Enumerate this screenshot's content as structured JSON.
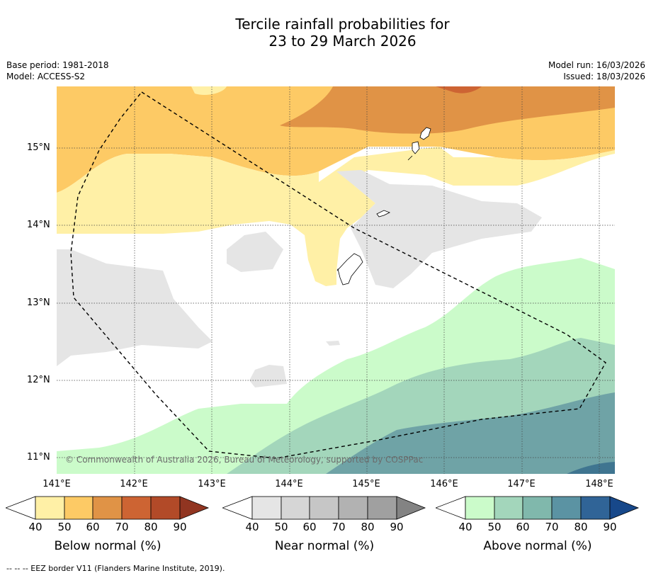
{
  "title": {
    "line1": "Tercile rainfall probabilities for",
    "line2": "23 to 29 March 2026"
  },
  "meta": {
    "base_period": "Base period: 1981-2018",
    "model": "Model: ACCESS-S2",
    "model_run": "Model run: 16/03/2026",
    "issued": "Issued: 18/03/2026"
  },
  "map": {
    "copyright": "© Commonwealth of Australia 2026, Bureau of Meteorology, supported by COSPPac",
    "lon_labels": [
      "141°E",
      "142°E",
      "143°E",
      "144°E",
      "145°E",
      "146°E",
      "147°E",
      "148°E"
    ],
    "lat_labels": [
      "15°N",
      "14°N",
      "13°N",
      "12°N",
      "11°N"
    ]
  },
  "colorbars": {
    "below": {
      "label": "Below normal (%)",
      "ticks": [
        "40",
        "50",
        "60",
        "70",
        "80",
        "90"
      ],
      "colors": [
        "#fff0a6",
        "#fdca65",
        "#e09346",
        "#cd6433",
        "#b24a28",
        "#913521"
      ]
    },
    "near": {
      "label": "Near normal (%)",
      "ticks": [
        "40",
        "50",
        "60",
        "70",
        "80",
        "90"
      ],
      "colors": [
        "#e5e5e5",
        "#d6d6d6",
        "#c6c6c6",
        "#b2b2b2",
        "#a0a0a0",
        "#838383"
      ]
    },
    "above": {
      "label": "Above normal (%)",
      "ticks": [
        "40",
        "50",
        "60",
        "70",
        "80",
        "90"
      ],
      "colors": [
        "#cbfbca",
        "#a3d6bb",
        "#80b8ac",
        "#5b93a3",
        "#306497",
        "#17488a"
      ]
    }
  },
  "footer": "--  --  -- EEZ border V11 (Flanders Marine Institute, 2019)."
}
